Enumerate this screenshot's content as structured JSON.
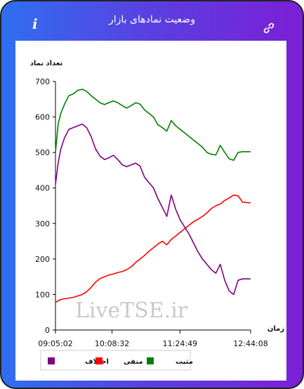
{
  "header": {
    "title": "وضعیت نمادهای بازار",
    "info_icon": "i",
    "link_icon_name": "link-icon"
  },
  "watermark": "LiveTSE.ir",
  "colors": {
    "header_left": "#2f6ff0",
    "header_right": "#7b1fd6",
    "positive": "#008000",
    "negative": "#ff0000",
    "difference": "#800080"
  },
  "chart_data": {
    "type": "line",
    "ylabel": "تعداد نماد",
    "xlabel": "زمان",
    "ylim": [
      0,
      700
    ],
    "yticks": [
      0,
      100,
      200,
      300,
      400,
      500,
      600,
      700
    ],
    "xtick_labels": [
      "09:05:02",
      "10:08:32",
      "11:24:49",
      "12:44:08"
    ],
    "xtick_values": [
      0,
      63.5,
      139.8,
      219.1
    ],
    "xlim": [
      0,
      219.1
    ],
    "legend_position": "bottom",
    "series": [
      {
        "name": "مثبت",
        "color": "#008000",
        "x": [
          0,
          3,
          6,
          10,
          15,
          20,
          25,
          30,
          35,
          40,
          45,
          50,
          55,
          60,
          65,
          70,
          75,
          80,
          85,
          90,
          95,
          100,
          105,
          110,
          115,
          120,
          125,
          130,
          135,
          140,
          145,
          150,
          155,
          160,
          165,
          170,
          175,
          180,
          185,
          190,
          195,
          200,
          205,
          210,
          219
        ],
        "y": [
          500,
          580,
          610,
          635,
          660,
          665,
          675,
          678,
          672,
          660,
          650,
          640,
          635,
          640,
          645,
          640,
          632,
          625,
          632,
          640,
          636,
          620,
          610,
          600,
          578,
          570,
          560,
          590,
          575,
          565,
          555,
          545,
          535,
          525,
          515,
          500,
          495,
          493,
          520,
          500,
          482,
          478,
          500,
          502,
          502
        ]
      },
      {
        "name": "منفی",
        "color": "#ff0000",
        "x": [
          0,
          5,
          10,
          15,
          20,
          25,
          30,
          35,
          40,
          45,
          50,
          55,
          60,
          65,
          70,
          75,
          80,
          85,
          90,
          95,
          100,
          105,
          110,
          115,
          120,
          125,
          130,
          135,
          140,
          145,
          150,
          155,
          160,
          165,
          170,
          175,
          180,
          185,
          190,
          195,
          200,
          205,
          210,
          219
        ],
        "y": [
          78,
          85,
          88,
          90,
          92,
          96,
          100,
          108,
          120,
          135,
          145,
          150,
          155,
          158,
          162,
          165,
          170,
          178,
          190,
          200,
          210,
          222,
          232,
          242,
          250,
          240,
          255,
          265,
          275,
          285,
          295,
          305,
          312,
          320,
          330,
          342,
          350,
          355,
          365,
          372,
          380,
          378,
          360,
          358
        ]
      },
      {
        "name": "اختلاف",
        "color": "#800080",
        "x": [
          0,
          3,
          6,
          10,
          15,
          20,
          25,
          30,
          35,
          40,
          45,
          50,
          55,
          60,
          65,
          70,
          75,
          80,
          85,
          90,
          95,
          100,
          105,
          110,
          115,
          120,
          125,
          130,
          135,
          140,
          145,
          150,
          155,
          160,
          165,
          170,
          175,
          180,
          185,
          190,
          195,
          200,
          205,
          210,
          219
        ],
        "y": [
          410,
          470,
          510,
          540,
          565,
          570,
          575,
          580,
          570,
          545,
          510,
          490,
          480,
          485,
          492,
          480,
          465,
          460,
          465,
          470,
          462,
          430,
          415,
          400,
          370,
          345,
          320,
          380,
          340,
          310,
          290,
          270,
          245,
          220,
          200,
          185,
          170,
          160,
          185,
          140,
          110,
          100,
          140,
          144,
          144
        ]
      }
    ]
  }
}
